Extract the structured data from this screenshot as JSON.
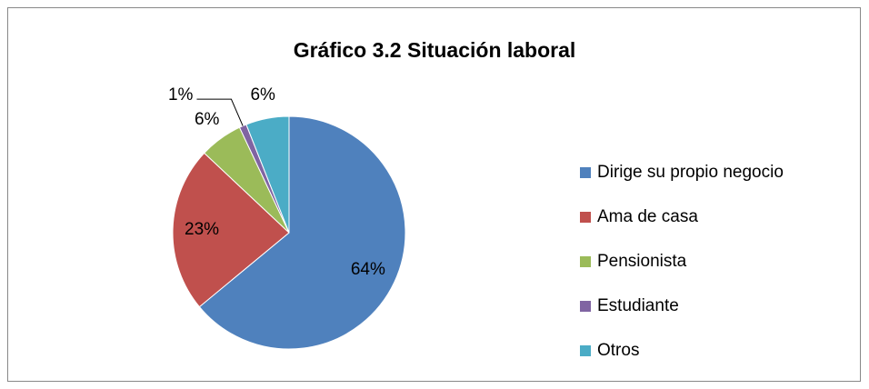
{
  "chart_data": {
    "type": "pie",
    "title": "Gráfico 3.2 Situación laboral",
    "categories": [
      "Dirige su propio negocio",
      "Ama de casa",
      "Pensionista",
      "Estudiante",
      "Otros"
    ],
    "values": [
      64,
      23,
      6,
      1,
      6
    ],
    "value_labels": [
      "64%",
      "23%",
      "6%",
      "1%",
      "6%"
    ],
    "colors": [
      "#4f81bd",
      "#c0504d",
      "#9bbb59",
      "#8064a2",
      "#4bacc6"
    ],
    "legend": "right"
  }
}
